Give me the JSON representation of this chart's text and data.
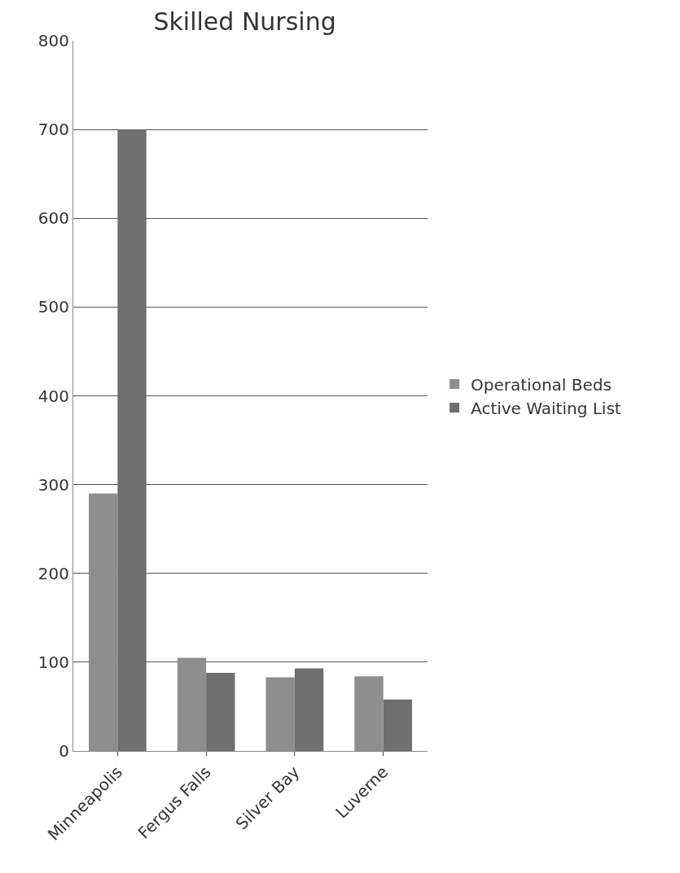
{
  "chart_data": {
    "type": "bar",
    "title": "Skilled Nursing",
    "categories": [
      "Minneapolis",
      "Fergus Falls",
      "Silver Bay",
      "Luverne"
    ],
    "series": [
      {
        "name": "Operational Beds",
        "color": "#8e8e8e",
        "values": [
          290,
          105,
          83,
          84
        ]
      },
      {
        "name": "Active Waiting List",
        "color": "#6f6f6f",
        "values": [
          700,
          88,
          93,
          58
        ]
      }
    ],
    "ylim": [
      0,
      800
    ],
    "yticks": [
      0,
      100,
      200,
      300,
      400,
      500,
      600,
      700,
      800
    ],
    "grid": "y",
    "legend": "right"
  }
}
